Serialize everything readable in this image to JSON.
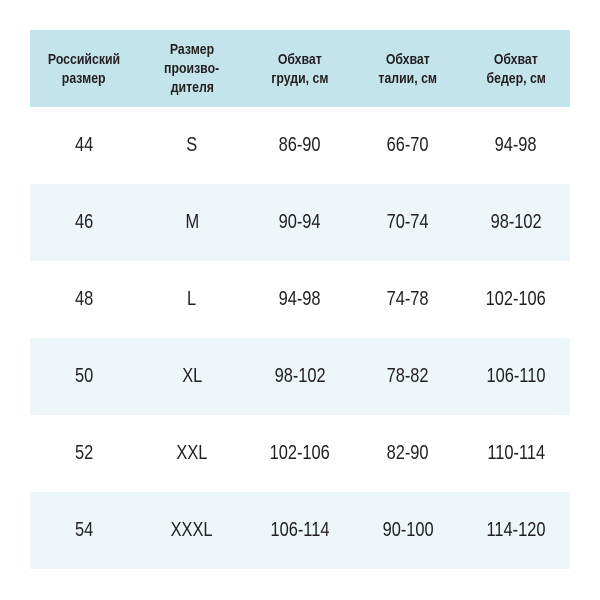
{
  "headers": [
    [
      "Российский",
      "размер"
    ],
    [
      "Размер",
      "произво-",
      "дителя"
    ],
    [
      "Обхват",
      "груди, см"
    ],
    [
      "Обхват",
      "талии, см"
    ],
    [
      "Обхват",
      "бедер, см"
    ]
  ],
  "rows": [
    [
      "44",
      "S",
      "86-90",
      "66-70",
      "94-98"
    ],
    [
      "46",
      "M",
      "90-94",
      "70-74",
      "98-102"
    ],
    [
      "48",
      "L",
      "94-98",
      "74-78",
      "102-106"
    ],
    [
      "50",
      "XL",
      "98-102",
      "78-82",
      "106-110"
    ],
    [
      "52",
      "XXL",
      "102-106",
      "82-90",
      "110-114"
    ],
    [
      "54",
      "XXXL",
      "106-114",
      "90-100",
      "114-120"
    ]
  ],
  "colors": {
    "header_bg": "#c4e4eb",
    "stripe_bg": "#edf6f9",
    "text": "#231f20"
  }
}
